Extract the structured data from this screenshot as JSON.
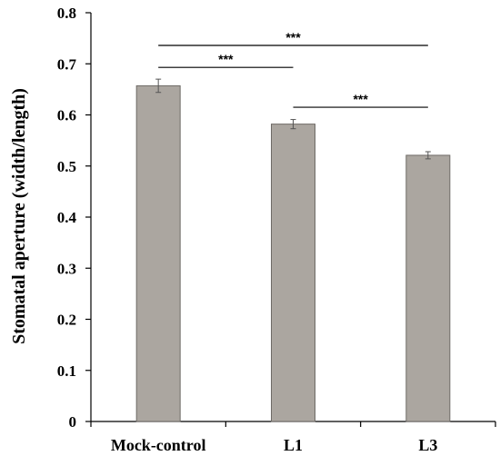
{
  "chart_data": {
    "type": "bar",
    "ylabel": "Stomatal aperture (width/length)",
    "xlabel": "",
    "categories": [
      "Mock-control",
      "L1",
      "L3"
    ],
    "values": [
      0.657,
      0.582,
      0.521
    ],
    "errors": [
      0.013,
      0.009,
      0.007
    ],
    "ylim": [
      0,
      0.8
    ],
    "yticks": [
      "0",
      "0.1",
      "0.2",
      "0.3",
      "0.4",
      "0.5",
      "0.6",
      "0.7",
      "0.8"
    ],
    "bar_color": "#aba6a0",
    "grid": false,
    "significance": [
      {
        "from": 0,
        "to": 1,
        "y": 0.693,
        "label": "***"
      },
      {
        "from": 0,
        "to": 2,
        "y": 0.736,
        "label": "***"
      },
      {
        "from": 1,
        "to": 2,
        "y": 0.615,
        "label": "***"
      }
    ]
  }
}
